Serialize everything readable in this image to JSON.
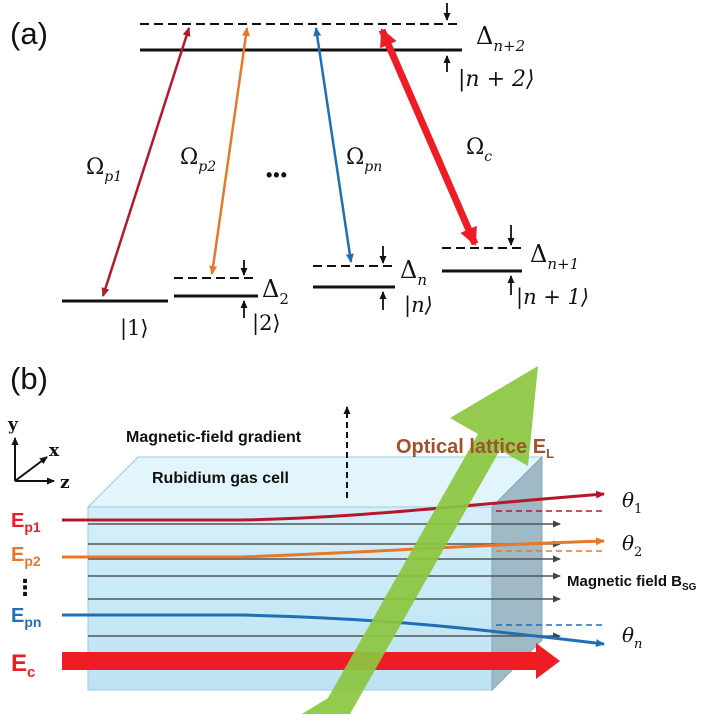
{
  "panel_a": {
    "label": "(a)",
    "levels": {
      "top": "|n + 2⟩",
      "ground": "|1⟩",
      "second": "|2⟩",
      "nth": "|n⟩",
      "n_plus_1": "|n + 1⟩"
    },
    "detunings": {
      "top": {
        "symbol": "Δ",
        "sub": "n+2"
      },
      "second": {
        "symbol": "Δ",
        "sub": "2"
      },
      "nth": {
        "symbol": "Δ",
        "sub": "n"
      },
      "n_plus_1": {
        "symbol": "Δ",
        "sub": "n+1"
      }
    },
    "couplings": {
      "p1": {
        "symbol": "Ω",
        "sub": "p1"
      },
      "p2": {
        "symbol": "Ω",
        "sub": "p2"
      },
      "pn": {
        "symbol": "Ω",
        "sub": "pn"
      },
      "c": {
        "symbol": "Ω",
        "sub": "c"
      }
    },
    "ellipsis": "•••"
  },
  "panel_b": {
    "label": "(b)",
    "axes": {
      "y": "y",
      "x": "x",
      "z": "z"
    },
    "gradient_label": "Magnetic-field gradient",
    "cell_label": "Rubidium gas cell",
    "lattice_label": {
      "text": "Optical lattice E",
      "sub": "L"
    },
    "field_label": {
      "text": "Magnetic field B",
      "sub": "SG"
    },
    "beams": {
      "p1": {
        "text": "E",
        "sub": "p1"
      },
      "p2": {
        "text": "E",
        "sub": "p2"
      },
      "pn": {
        "text": "E",
        "sub": "pn"
      },
      "c": {
        "text": "E",
        "sub": "c"
      },
      "dots": "⋮"
    },
    "angles": {
      "t1": {
        "symbol": "θ",
        "sub": "1"
      },
      "t2": {
        "symbol": "θ",
        "sub": "2"
      },
      "tn": {
        "symbol": "θ",
        "sub": "n"
      }
    }
  },
  "colors": {
    "p1": "#b5182a",
    "p2": "#e8772a",
    "pn": "#1f6fb5",
    "coupling": "#ee1c25",
    "lattice": "#8cc63f",
    "lattice_text": "#a0522d",
    "cell": "#bfe6f5"
  }
}
